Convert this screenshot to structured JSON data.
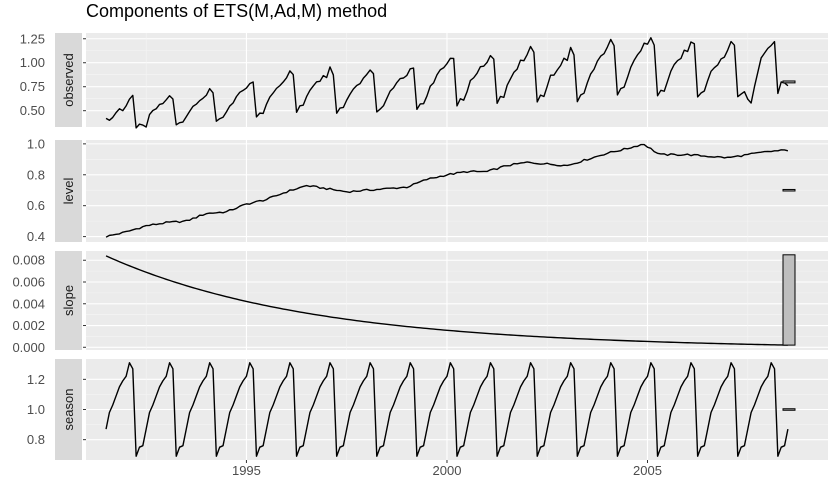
{
  "chart_data": {
    "type": "line",
    "title": "Components of ETS(M,Ad,M) method",
    "xlabel": "",
    "ylabel": "",
    "x_ticks": [
      1995,
      2000,
      2005
    ],
    "xlim": [
      1991,
      2009.5
    ],
    "grid": true,
    "facet_strip_position": "right",
    "facet_strips": [
      "observed",
      "level",
      "slope",
      "season"
    ],
    "observed_anchor_points": [
      [
        1991.5,
        0.42
      ],
      [
        1991.58,
        0.4
      ],
      [
        1991.67,
        0.43
      ],
      [
        1991.75,
        0.48
      ],
      [
        1991.83,
        0.52
      ],
      [
        1991.92,
        0.5
      ],
      [
        1992.0,
        0.55
      ],
      [
        1992.08,
        0.62
      ],
      [
        1992.17,
        0.66
      ],
      [
        1992.25,
        0.32
      ],
      [
        1992.33,
        0.36
      ],
      [
        1992.42,
        0.35
      ],
      [
        1992.5,
        0.33
      ],
      [
        2007.5,
        0.62
      ],
      [
        2007.58,
        0.58
      ],
      [
        2007.67,
        0.75
      ],
      [
        2007.75,
        0.9
      ],
      [
        2007.83,
        1.05
      ],
      [
        2007.92,
        1.1
      ],
      [
        2008.0,
        1.15
      ],
      [
        2008.08,
        1.18
      ],
      [
        2008.17,
        1.22
      ],
      [
        2008.25,
        0.68
      ],
      [
        2008.33,
        0.8
      ],
      [
        2008.42,
        0.79
      ],
      [
        2008.5,
        0.76
      ]
    ],
    "panels": [
      {
        "name": "observed",
        "ylim": [
          0.33,
          1.31
        ],
        "y_ticks": [
          0.5,
          0.75,
          1.0,
          1.25
        ],
        "y_tick_labels": [
          "0.50",
          "0.75",
          "1.00",
          "1.25"
        ],
        "range_bar": [
          0.79,
          0.81
        ]
      },
      {
        "name": "level",
        "ylim": [
          0.365,
          1.025
        ],
        "y_ticks": [
          0.4,
          0.6,
          0.8,
          1.0
        ],
        "y_tick_labels": [
          "0.4",
          "0.6",
          "0.8",
          "1.0"
        ],
        "start": 0.4,
        "end": 0.96,
        "range_bar": [
          0.695,
          0.705
        ],
        "anchor_points": [
          [
            1991.5,
            0.4
          ],
          [
            1992.0,
            0.43
          ],
          [
            1992.5,
            0.47
          ],
          [
            1993.0,
            0.49
          ],
          [
            1993.5,
            0.5
          ],
          [
            1994.0,
            0.55
          ],
          [
            1994.5,
            0.56
          ],
          [
            1995.0,
            0.61
          ],
          [
            1995.5,
            0.64
          ],
          [
            1996.0,
            0.69
          ],
          [
            1996.5,
            0.73
          ],
          [
            1997.0,
            0.71
          ],
          [
            1997.5,
            0.69
          ],
          [
            1998.0,
            0.7
          ],
          [
            1998.5,
            0.71
          ],
          [
            1999.0,
            0.72
          ],
          [
            1999.5,
            0.77
          ],
          [
            2000.0,
            0.8
          ],
          [
            2000.5,
            0.82
          ],
          [
            2001.0,
            0.82
          ],
          [
            2001.5,
            0.86
          ],
          [
            2002.0,
            0.88
          ],
          [
            2002.5,
            0.87
          ],
          [
            2003.0,
            0.86
          ],
          [
            2003.5,
            0.9
          ],
          [
            2004.0,
            0.94
          ],
          [
            2004.5,
            0.97
          ],
          [
            2004.9,
            1.0
          ],
          [
            2005.3,
            0.93
          ],
          [
            2005.7,
            0.93
          ],
          [
            2006.0,
            0.93
          ],
          [
            2006.5,
            0.92
          ],
          [
            2007.0,
            0.91
          ],
          [
            2007.5,
            0.93
          ],
          [
            2008.0,
            0.95
          ],
          [
            2008.5,
            0.96
          ]
        ]
      },
      {
        "name": "slope",
        "ylim": [
          -0.00025,
          0.00885
        ],
        "y_ticks": [
          0.0,
          0.002,
          0.004,
          0.006,
          0.008
        ],
        "y_tick_labels": [
          "0.000",
          "0.002",
          "0.004",
          "0.006",
          "0.008"
        ],
        "start": 0.0084,
        "end": 0.0002,
        "range_bar": [
          0.0002,
          0.0085
        ]
      },
      {
        "name": "season",
        "ylim": [
          0.665,
          1.335
        ],
        "y_ticks": [
          0.8,
          1.0,
          1.2
        ],
        "y_tick_labels": [
          "0.8",
          "1.0",
          "1.2"
        ],
        "period": 12,
        "season_pattern": [
          0.87,
          0.98,
          1.03,
          1.09,
          1.15,
          1.19,
          1.22,
          1.31,
          1.27,
          0.69,
          0.75,
          0.76
        ],
        "range_bar": [
          0.995,
          1.005
        ]
      }
    ]
  }
}
